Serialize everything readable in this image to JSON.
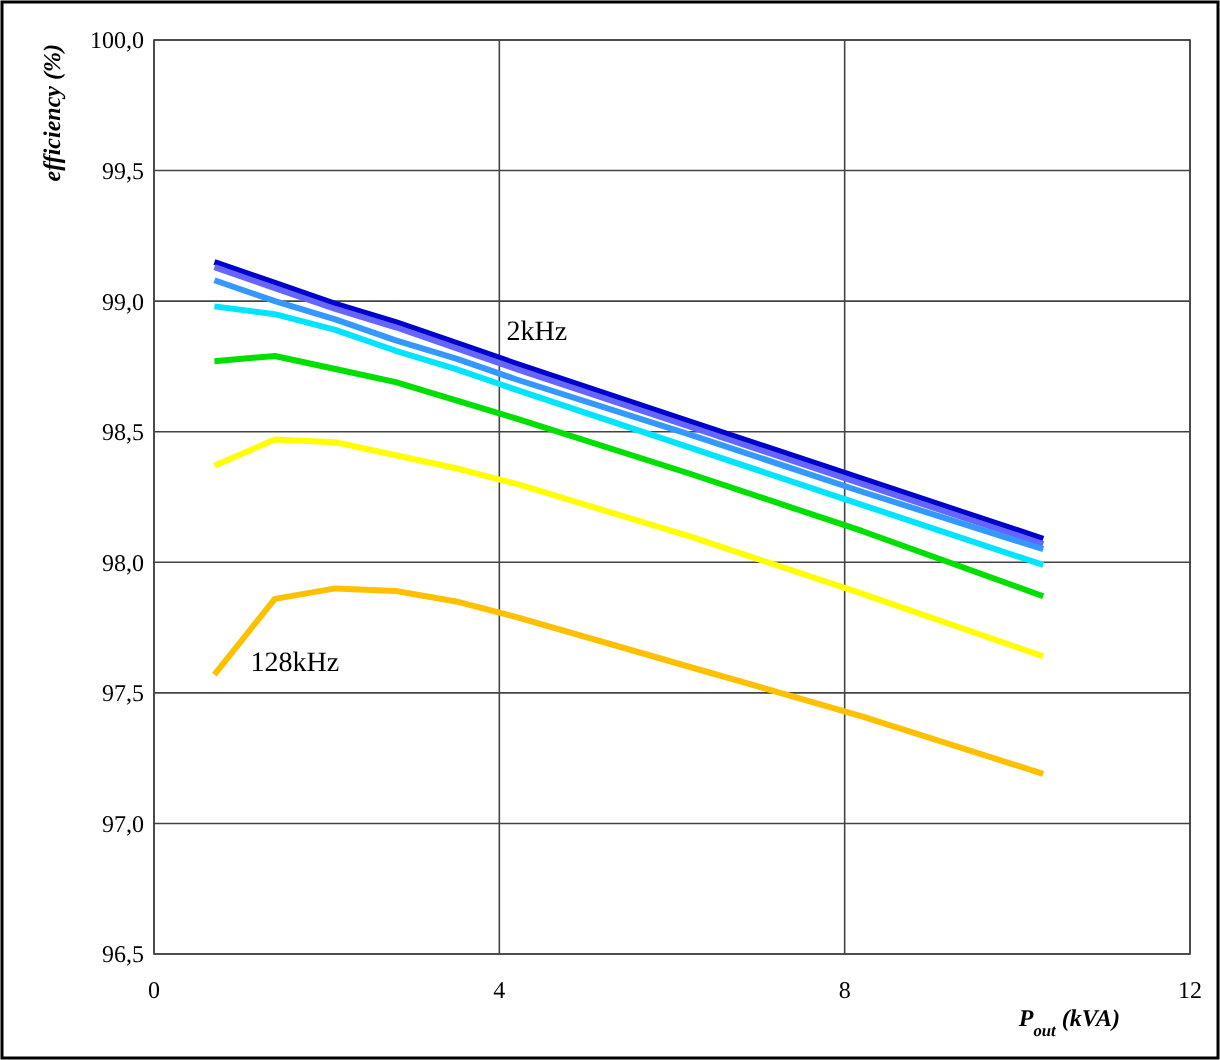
{
  "chart_data": {
    "type": "line",
    "xlabel": "P$_{out}$ (kVA)",
    "ylabel": "efficiency (%)",
    "xlim": [
      0,
      12
    ],
    "xticks": [
      0,
      4,
      8,
      12
    ],
    "ylim": [
      96.5,
      100
    ],
    "yticks": [
      {
        "value": 96.5,
        "label": "96,5"
      },
      {
        "value": 97,
        "label": "97,0"
      },
      {
        "value": 97.5,
        "label": "97,5"
      },
      {
        "value": 98,
        "label": "98,0"
      },
      {
        "value": 98.5,
        "label": "98,5"
      },
      {
        "value": 99,
        "label": "99,0"
      },
      {
        "value": 99.5,
        "label": "99,5"
      },
      {
        "value": 100,
        "label": "100,0"
      }
    ],
    "grid": true,
    "marker": "none",
    "line_style": "solid",
    "x": [
      0.7,
      1.4,
      2.1,
      2.8,
      3.5,
      4.2,
      6.2,
      8.2,
      10.3
    ],
    "series": [
      {
        "color": "#0000cc",
        "values": [
          99.15,
          99.07,
          98.99,
          98.92,
          98.84,
          98.76,
          98.54,
          98.32,
          98.09
        ]
      },
      {
        "color": "#6666ff",
        "values": [
          99.13,
          99.05,
          98.97,
          98.9,
          98.82,
          98.74,
          98.52,
          98.3,
          98.07
        ]
      },
      {
        "color": "#3399ff",
        "values": [
          99.08,
          99.0,
          98.93,
          98.85,
          98.78,
          98.7,
          98.49,
          98.27,
          98.05
        ]
      },
      {
        "color": "#00e5ff",
        "values": [
          98.98,
          98.95,
          98.89,
          98.81,
          98.74,
          98.66,
          98.44,
          98.22,
          97.99
        ]
      },
      {
        "color": "#00e000",
        "values": [
          98.77,
          98.79,
          98.74,
          98.69,
          98.62,
          98.55,
          98.34,
          98.12,
          97.87
        ]
      },
      {
        "color": "#ffff00",
        "values": [
          98.37,
          98.47,
          98.46,
          98.41,
          98.36,
          98.3,
          98.1,
          97.88,
          97.64
        ]
      },
      {
        "color": "#ffc000",
        "values": [
          97.57,
          97.86,
          97.9,
          97.89,
          97.85,
          97.79,
          97.6,
          97.41,
          97.19
        ]
      }
    ],
    "annotations": [
      "2kHz",
      "128kHz"
    ]
  }
}
